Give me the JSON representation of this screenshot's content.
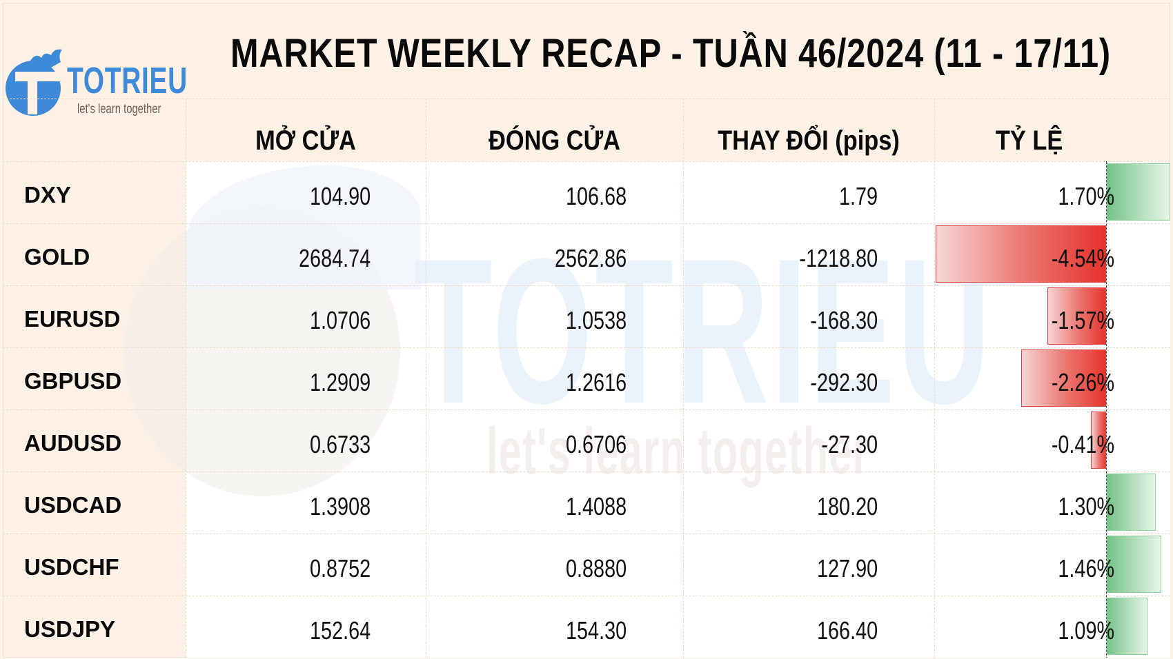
{
  "header": {
    "title": "MARKET WEEKLY RECAP - TUẦN 46/2024 (11 - 17/11)",
    "logo": {
      "name": "TOTRIEU",
      "tagline": "let's learn together"
    }
  },
  "watermark": {
    "name": "TOTRIEU",
    "tagline": "let's learn together"
  },
  "table": {
    "columns": [
      "MỞ CỬA",
      "ĐÓNG CỬA",
      "THAY ĐỔI (pips)",
      "TỶ LỆ"
    ],
    "rows": [
      {
        "symbol": "DXY",
        "open": "104.90",
        "close": "106.68",
        "change": "1.79",
        "pct": "1.70%",
        "pct_value": 1.7
      },
      {
        "symbol": "GOLD",
        "open": "2684.74",
        "close": "2562.86",
        "change": "-1218.80",
        "pct": "-4.54%",
        "pct_value": -4.54
      },
      {
        "symbol": "EURUSD",
        "open": "1.0706",
        "close": "1.0538",
        "change": "-168.30",
        "pct": "-1.57%",
        "pct_value": -1.57
      },
      {
        "symbol": "GBPUSD",
        "open": "1.2909",
        "close": "1.2616",
        "change": "-292.30",
        "pct": "-2.26%",
        "pct_value": -2.26
      },
      {
        "symbol": "AUDUSD",
        "open": "0.6733",
        "close": "0.6706",
        "change": "-27.30",
        "pct": "-0.41%",
        "pct_value": -0.41
      },
      {
        "symbol": "USDCAD",
        "open": "1.3908",
        "close": "1.4088",
        "change": "180.20",
        "pct": "1.30%",
        "pct_value": 1.3
      },
      {
        "symbol": "USDCHF",
        "open": "0.8752",
        "close": "0.8880",
        "change": "127.90",
        "pct": "1.46%",
        "pct_value": 1.46
      },
      {
        "symbol": "USDJPY",
        "open": "152.64",
        "close": "154.30",
        "change": "166.40",
        "pct": "1.09%",
        "pct_value": 1.09
      }
    ]
  },
  "colors": {
    "positive": "#74c287",
    "negative": "#e5322a",
    "brand": "#3f8ad8",
    "background": "#fdf1e6"
  }
}
